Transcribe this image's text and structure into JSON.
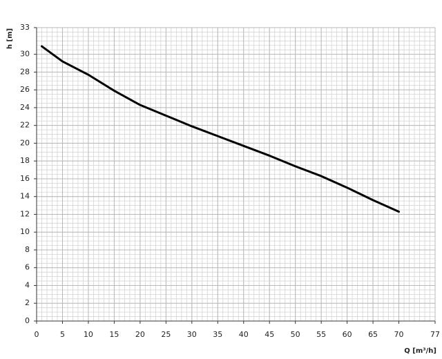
{
  "chart_data": {
    "type": "line",
    "x_label": "Q [m³/h]",
    "y_label": "h [m]",
    "series": [
      {
        "name": "h",
        "color": "#000000",
        "x": [
          1,
          5,
          10,
          15,
          20,
          25,
          30,
          35,
          40,
          45,
          50,
          55,
          60,
          65,
          70
        ],
        "values": [
          30.9,
          29.2,
          27.7,
          25.9,
          24.3,
          23.1,
          21.9,
          20.8,
          19.7,
          18.6,
          17.4,
          16.3,
          15.0,
          13.6,
          12.3
        ]
      }
    ],
    "xlim": [
      0,
      77
    ],
    "xticks": [
      0,
      5,
      10,
      15,
      20,
      25,
      30,
      35,
      40,
      45,
      50,
      55,
      60,
      65,
      70,
      77
    ],
    "ylim": [
      0,
      33
    ],
    "yticks": [
      0,
      2,
      4,
      6,
      8,
      10,
      12,
      14,
      16,
      18,
      20,
      22,
      24,
      26,
      28,
      30,
      33
    ],
    "grid": true,
    "minor_grid": {
      "x": 1,
      "y": 0.5
    }
  }
}
